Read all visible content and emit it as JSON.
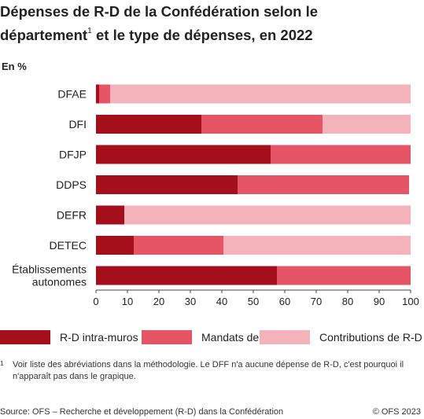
{
  "title_line1": "Dépenses de R-D de la Confédération selon le",
  "title_line2": "département",
  "title_sup": "1",
  "title_line2_rest": " et le type de dépenses, en 2022",
  "unit_label": "En %",
  "footnote_marker": "1",
  "footnote_text": "Voir liste des abréviations dans la méthodologie. Le DFF n'a aucune dépense de R-D, c'est pourquoi il n'apparaît pas dans le grapique.",
  "source": "Source: OFS – Recherche et développement (R-D) dans la Confédération",
  "copyright": "© OFS 2023",
  "colors": {
    "intra": "#a50f1c",
    "mandats": "#e55566",
    "contributions": "#f4b3bb",
    "axis": "#444444"
  },
  "chart_data": {
    "type": "bar",
    "orientation": "horizontal",
    "stacked": true,
    "categories": [
      "DFAE",
      "DFI",
      "DFJP",
      "DDPS",
      "DEFR",
      "DETEC",
      "Établissements autonomes"
    ],
    "category_lines": [
      [
        "DFAE"
      ],
      [
        "DFI"
      ],
      [
        "DFJP"
      ],
      [
        "DDPS"
      ],
      [
        "DEFR"
      ],
      [
        "DETEC"
      ],
      [
        "Établissements",
        "autonomes"
      ]
    ],
    "series": [
      {
        "name": "R-D intra-muros",
        "color": "#a50f1c",
        "values": [
          1,
          33.5,
          55.5,
          45,
          9,
          12,
          57.5
        ]
      },
      {
        "name": "Mandats de R-D",
        "color": "#e55566",
        "values": [
          3.5,
          38.5,
          44.5,
          54.5,
          0,
          28.5,
          42.5
        ]
      },
      {
        "name": "Contributions de R-D",
        "color": "#f4b3bb",
        "values": [
          95.5,
          28,
          0,
          0,
          91,
          59.5,
          0
        ]
      }
    ],
    "xlim": [
      0,
      100
    ],
    "xticks": [
      0,
      10,
      20,
      30,
      40,
      50,
      60,
      70,
      80,
      90,
      100
    ],
    "legend_position": "bottom"
  }
}
